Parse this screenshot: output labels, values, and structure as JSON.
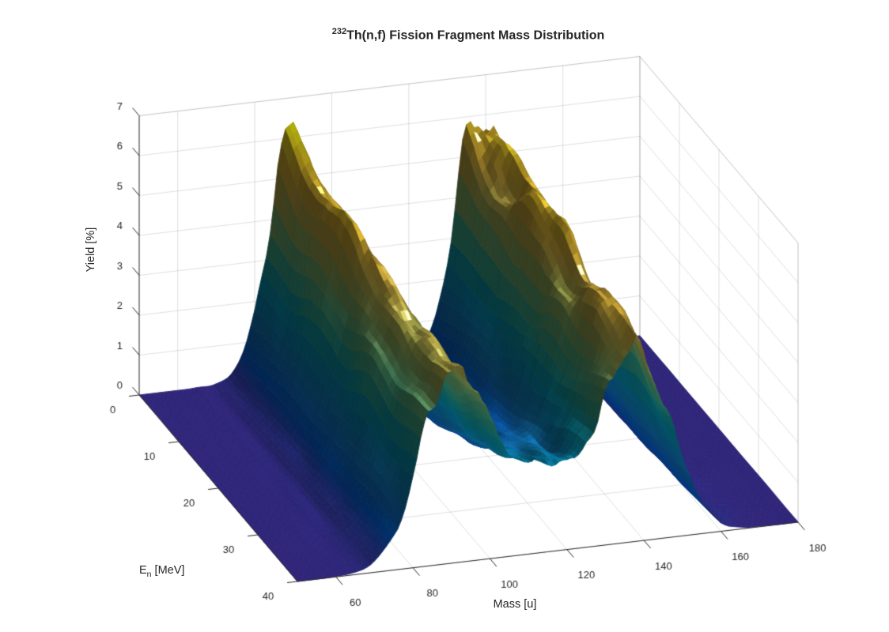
{
  "figure": {
    "title": {
      "superscript": "232",
      "main": "Th(n,f) Fission Fragment Mass Distribution"
    },
    "background_color": "#ffffff",
    "text_color": "#262626"
  },
  "chart_data": {
    "type": "heatmap",
    "plot_style": "3d-surface",
    "title": "^{232}Th(n,f) Fission Fragment Mass Distribution",
    "xlabel": "Mass [u]",
    "ylabel_base": "E",
    "ylabel_sub": "n",
    "ylabel_unit": " [MeV]",
    "zlabel": "Yield [%]",
    "xlim": [
      50,
      180
    ],
    "ylim": [
      0,
      40
    ],
    "zlim": [
      0,
      7
    ],
    "xticks": [
      60,
      80,
      100,
      120,
      140,
      160,
      180
    ],
    "yticks": [
      0,
      10,
      20,
      30,
      40
    ],
    "zticks": [
      0,
      1,
      2,
      3,
      4,
      5,
      6,
      7
    ],
    "grid": true,
    "x_mass_u": [
      50,
      55,
      60,
      65,
      70,
      75,
      80,
      85,
      90,
      95,
      100,
      105,
      110,
      115,
      120,
      125,
      130,
      135,
      140,
      145,
      150,
      155,
      160,
      165,
      170,
      175,
      180
    ],
    "y_energy_MeV": [
      0,
      10,
      20,
      30,
      40
    ],
    "z_yield_percent": [
      [
        0,
        0,
        0,
        0.01,
        0.05,
        0.42,
        1.84,
        4.46,
        6.0,
        4.47,
        1.84,
        0.42,
        0.07,
        0.03,
        0.1,
        0.61,
        2.4,
        5.17,
        6.17,
        4.08,
        1.49,
        0.3,
        0.03,
        0,
        0,
        0,
        0
      ],
      [
        0,
        0,
        0.01,
        0.02,
        0.1,
        0.56,
        2.02,
        4.35,
        5.63,
        4.41,
        2.15,
        0.77,
        0.37,
        0.32,
        0.42,
        0.99,
        2.67,
        5.0,
        5.77,
        4.04,
        1.69,
        0.43,
        0.06,
        0.01,
        0,
        0,
        0
      ],
      [
        0,
        0,
        0.01,
        0.03,
        0.15,
        0.7,
        2.15,
        4.19,
        5.27,
        4.33,
        2.43,
        1.15,
        0.88,
        0.85,
        0.95,
        1.5,
        2.97,
        4.84,
        5.39,
        3.92,
        1.84,
        0.55,
        0.11,
        0.01,
        0,
        0,
        0
      ],
      [
        0,
        0,
        0.01,
        0.04,
        0.21,
        0.84,
        2.25,
        4.08,
        5.01,
        4.35,
        2.86,
        1.82,
        1.49,
        1.48,
        1.58,
        2.05,
        3.26,
        4.71,
        5.07,
        3.8,
        1.94,
        0.67,
        0.16,
        0.03,
        0.01,
        0,
        0
      ],
      [
        0,
        0,
        0.01,
        0.06,
        0.29,
        0.98,
        2.33,
        3.92,
        4.78,
        4.33,
        3.19,
        2.36,
        2.13,
        2.15,
        2.22,
        2.6,
        3.55,
        4.62,
        4.8,
        3.68,
        2.02,
        0.78,
        0.22,
        0.04,
        0.01,
        0,
        0
      ]
    ],
    "legend": null,
    "colormap": {
      "name": "parula",
      "stops": [
        "#352a87",
        "#3145bc",
        "#0265e1",
        "#0f77db",
        "#1388d2",
        "#0d95d1",
        "#06a4ca",
        "#13aeb7",
        "#38b99e",
        "#5cbe8b",
        "#84bf77",
        "#aabd5f",
        "#c9b94f",
        "#e0b83f",
        "#f0c532",
        "#f7dd22",
        "#f9fb0e"
      ]
    },
    "grid_color": "rgba(38,38,38,0.15)",
    "axis_color": "#262626"
  }
}
